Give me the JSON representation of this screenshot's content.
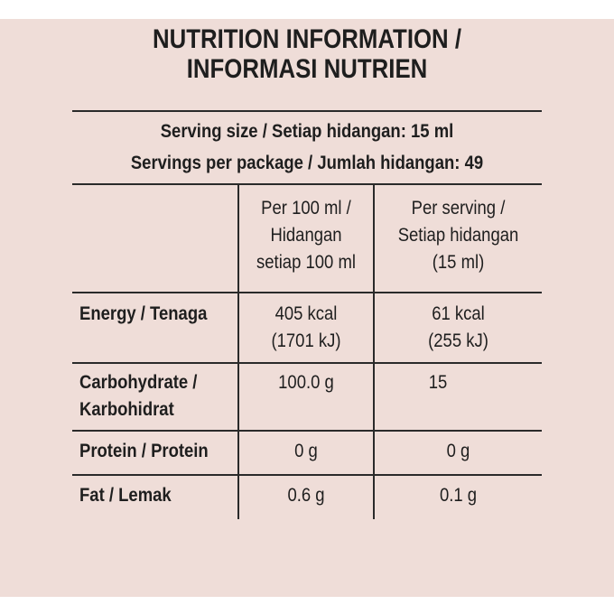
{
  "title": {
    "line1": "NUTRITION INFORMATION /",
    "line2": "INFORMASI NUTRIEN"
  },
  "serving": {
    "size": "Serving size / Setiap hidangan: 15 ml",
    "per_package": "Servings per package / Jumlah hidangan: 49"
  },
  "header": {
    "col1": [
      "Per 100 ml /",
      "Hidangan",
      "setiap 100 ml"
    ],
    "col2": [
      "Per serving /",
      "Setiap hidangan",
      "(15 ml)"
    ]
  },
  "rows": [
    {
      "label": [
        "Energy / Tenaga"
      ],
      "per100": [
        "405 kcal",
        "(1701 kJ)"
      ],
      "serving": [
        "61 kcal",
        "(255 kJ)"
      ]
    },
    {
      "label": [
        "Carbohydrate /",
        "Karbohidrat"
      ],
      "per100": [
        "100.0 g"
      ],
      "serving": [
        "15"
      ]
    },
    {
      "label": [
        "Protein / Protein"
      ],
      "per100": [
        "0 g"
      ],
      "serving": [
        "0 g"
      ]
    },
    {
      "label": [
        "Fat / Lemak"
      ],
      "per100": [
        "0.6 g"
      ],
      "serving": [
        "0.1 g"
      ]
    }
  ]
}
